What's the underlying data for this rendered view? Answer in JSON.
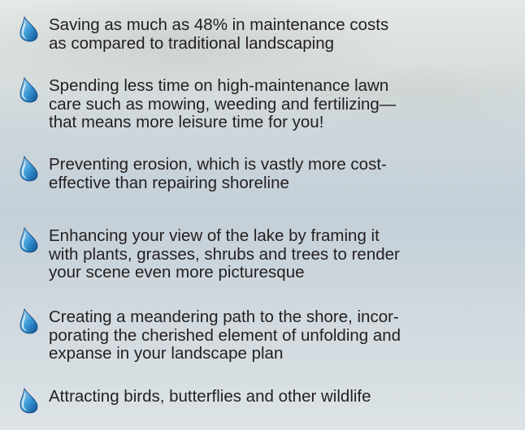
{
  "items": [
    {
      "lines": [
        "Saving as much as 48% in maintenance costs",
        "as compared to traditional landscaping"
      ]
    },
    {
      "lines": [
        "Spending less time on high-maintenance lawn",
        "care such as mowing, weeding and fertilizing—",
        "that means more leisure time for you!"
      ]
    },
    {
      "lines": [
        "Preventing erosion, which is vastly more cost-",
        "effective than repairing shoreline"
      ]
    },
    {
      "lines": [
        "Enhancing your view of the lake by framing it",
        "with plants, grasses, shrubs and trees to render",
        "your scene even more picturesque"
      ]
    },
    {
      "lines": [
        "Creating a meandering path to the shore, incor-",
        "porating the cherished element of unfolding and",
        "expanse in your landscape plan"
      ]
    },
    {
      "lines": [
        "Attracting birds, butterflies and other wildlife"
      ]
    }
  ]
}
